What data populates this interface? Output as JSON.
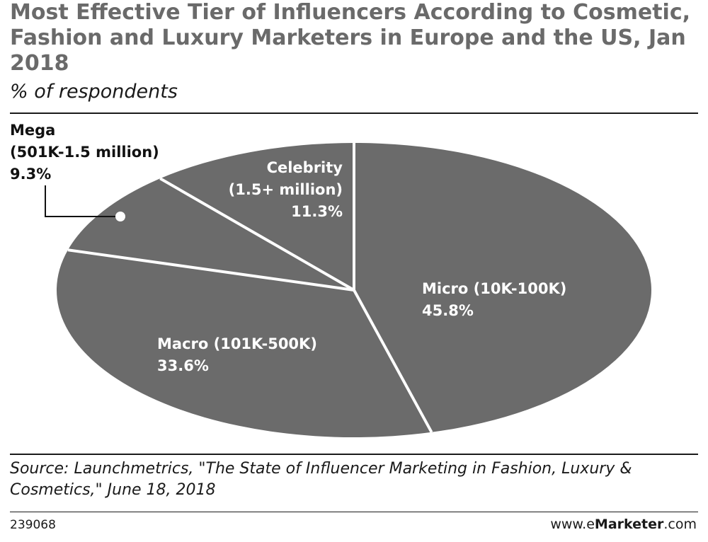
{
  "chart_data": {
    "type": "pie",
    "title": "Most Effective Tier of Influencers According to Cosmetic, Fashion and Luxury Marketers in Europe and the US, Jan 2018",
    "subtitle": "% of respondents",
    "slices": [
      {
        "label": "Micro (10K-100K)",
        "value": 45.8,
        "value_label": "45.8%"
      },
      {
        "label": "Macro (101K-500K)",
        "value": 33.6,
        "value_label": "33.6%"
      },
      {
        "label": "Mega",
        "sublabel": "(501K-1.5 million)",
        "value": 9.3,
        "value_label": "9.3%"
      },
      {
        "label": "Celebrity",
        "sublabel": "(1.5+ million)",
        "value": 11.3,
        "value_label": "11.3%"
      }
    ],
    "colors": {
      "slice": "#6b6b6b",
      "separator": "#ffffff",
      "title": "#6a6a6a"
    }
  },
  "footer": {
    "source": "Source: Launchmetrics, \"The State of Influencer Marketing in Fashion, Luxury & Cosmetics,\" June 18, 2018",
    "chart_id": "239068",
    "brand_prefix": "www.e",
    "brand_bold": "Marketer",
    "brand_suffix": ".com"
  }
}
